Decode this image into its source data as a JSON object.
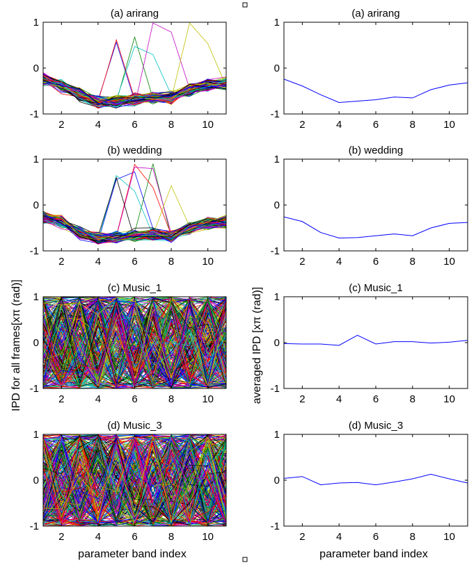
{
  "chart_data": {
    "type": "line",
    "xlabel": "parameter band index",
    "left_ylabel": "IPD for all frames[xπ (rad)]",
    "right_ylabel": "averaged IPD [xπ (rad)]",
    "xlim": [
      1,
      11
    ],
    "ylim": [
      -1,
      1
    ],
    "xticks": [
      2,
      4,
      6,
      8,
      10
    ],
    "yticks": [
      1,
      0,
      -1
    ],
    "x": [
      1,
      2,
      3,
      4,
      5,
      6,
      7,
      8,
      9,
      10,
      11
    ],
    "colors": [
      "#0000ff",
      "#008000",
      "#ff0000",
      "#00bfbf",
      "#bf00bf",
      "#bfbf00",
      "#000000"
    ],
    "panels": [
      {
        "title": "(a) arirang",
        "all_frames": {
          "mean_profile": [
            -0.24,
            -0.39,
            -0.58,
            -0.75,
            -0.72,
            -0.69,
            -0.63,
            -0.65,
            -0.47,
            -0.37,
            -0.32
          ],
          "spread": 0.12,
          "lines": 120,
          "outliers": 6
        },
        "averaged": [
          -0.24,
          -0.39,
          -0.58,
          -0.75,
          -0.72,
          -0.69,
          -0.63,
          -0.65,
          -0.47,
          -0.37,
          -0.32
        ]
      },
      {
        "title": "(b) wedding",
        "all_frames": {
          "mean_profile": [
            -0.26,
            -0.36,
            -0.6,
            -0.72,
            -0.71,
            -0.67,
            -0.63,
            -0.67,
            -0.5,
            -0.4,
            -0.38
          ],
          "spread": 0.12,
          "lines": 120,
          "outliers": 7
        },
        "averaged": [
          -0.26,
          -0.36,
          -0.6,
          -0.72,
          -0.71,
          -0.67,
          -0.63,
          -0.67,
          -0.5,
          -0.4,
          -0.38
        ]
      },
      {
        "title": "(c) Music_1",
        "all_frames": {
          "mean_profile": [
            -0.02,
            -0.03,
            -0.03,
            -0.06,
            0.16,
            -0.03,
            0.02,
            0.02,
            -0.01,
            0.01,
            0.05
          ],
          "spread": 1.0,
          "lines": 300,
          "outliers": 0
        },
        "averaged": [
          -0.02,
          -0.03,
          -0.03,
          -0.06,
          0.16,
          -0.03,
          0.02,
          0.02,
          -0.01,
          0.01,
          0.05
        ]
      },
      {
        "title": "(d) Music_3",
        "all_frames": {
          "mean_profile": [
            0.04,
            0.08,
            -0.1,
            -0.06,
            -0.05,
            -0.1,
            -0.04,
            0.03,
            0.13,
            0.03,
            -0.06
          ],
          "spread": 1.0,
          "lines": 300,
          "outliers": 0
        },
        "averaged": [
          0.04,
          0.08,
          -0.1,
          -0.06,
          -0.05,
          -0.1,
          -0.04,
          0.03,
          0.13,
          0.03,
          -0.06
        ]
      }
    ]
  }
}
